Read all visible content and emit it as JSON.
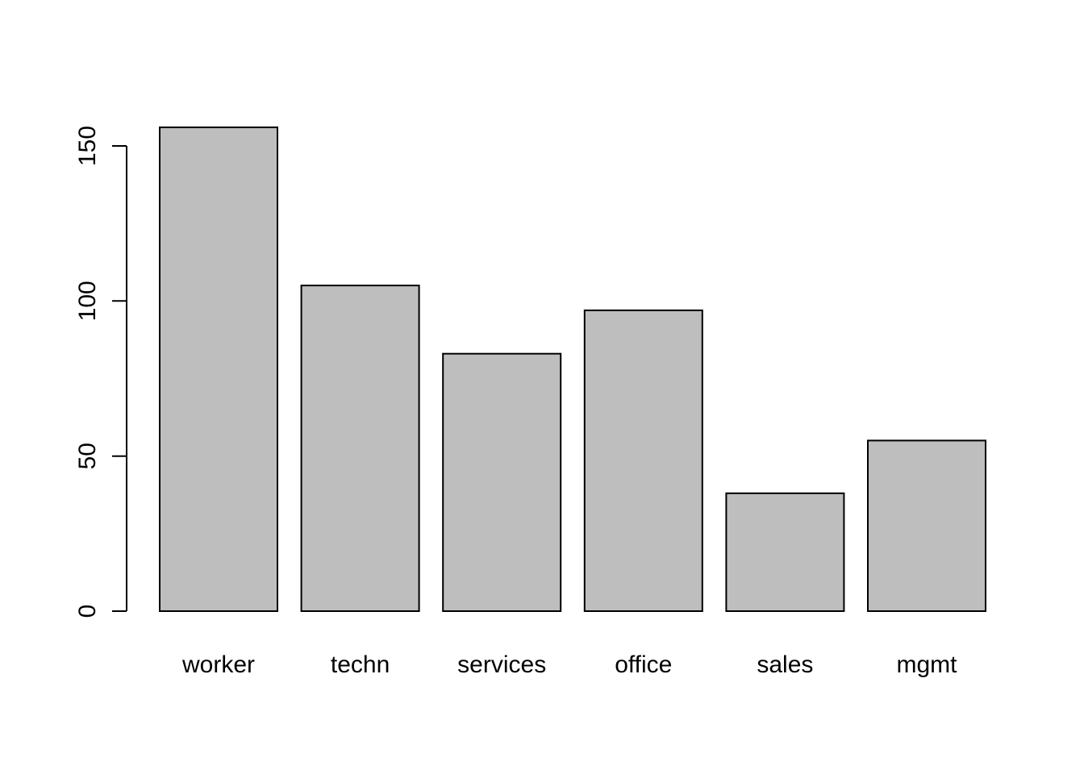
{
  "chart_data": {
    "type": "bar",
    "categories": [
      "worker",
      "techn",
      "services",
      "office",
      "sales",
      "mgmt"
    ],
    "values": [
      156,
      105,
      83,
      97,
      38,
      55
    ],
    "title": "",
    "xlabel": "",
    "ylabel": "",
    "ylim": [
      0,
      156
    ],
    "yticks": [
      0,
      50,
      100,
      150
    ],
    "ytick_labels": [
      "0",
      "50",
      "100",
      "150"
    ],
    "grid": false,
    "legend": "none",
    "bar_color": "#bebebe",
    "border_color": "#000000"
  }
}
